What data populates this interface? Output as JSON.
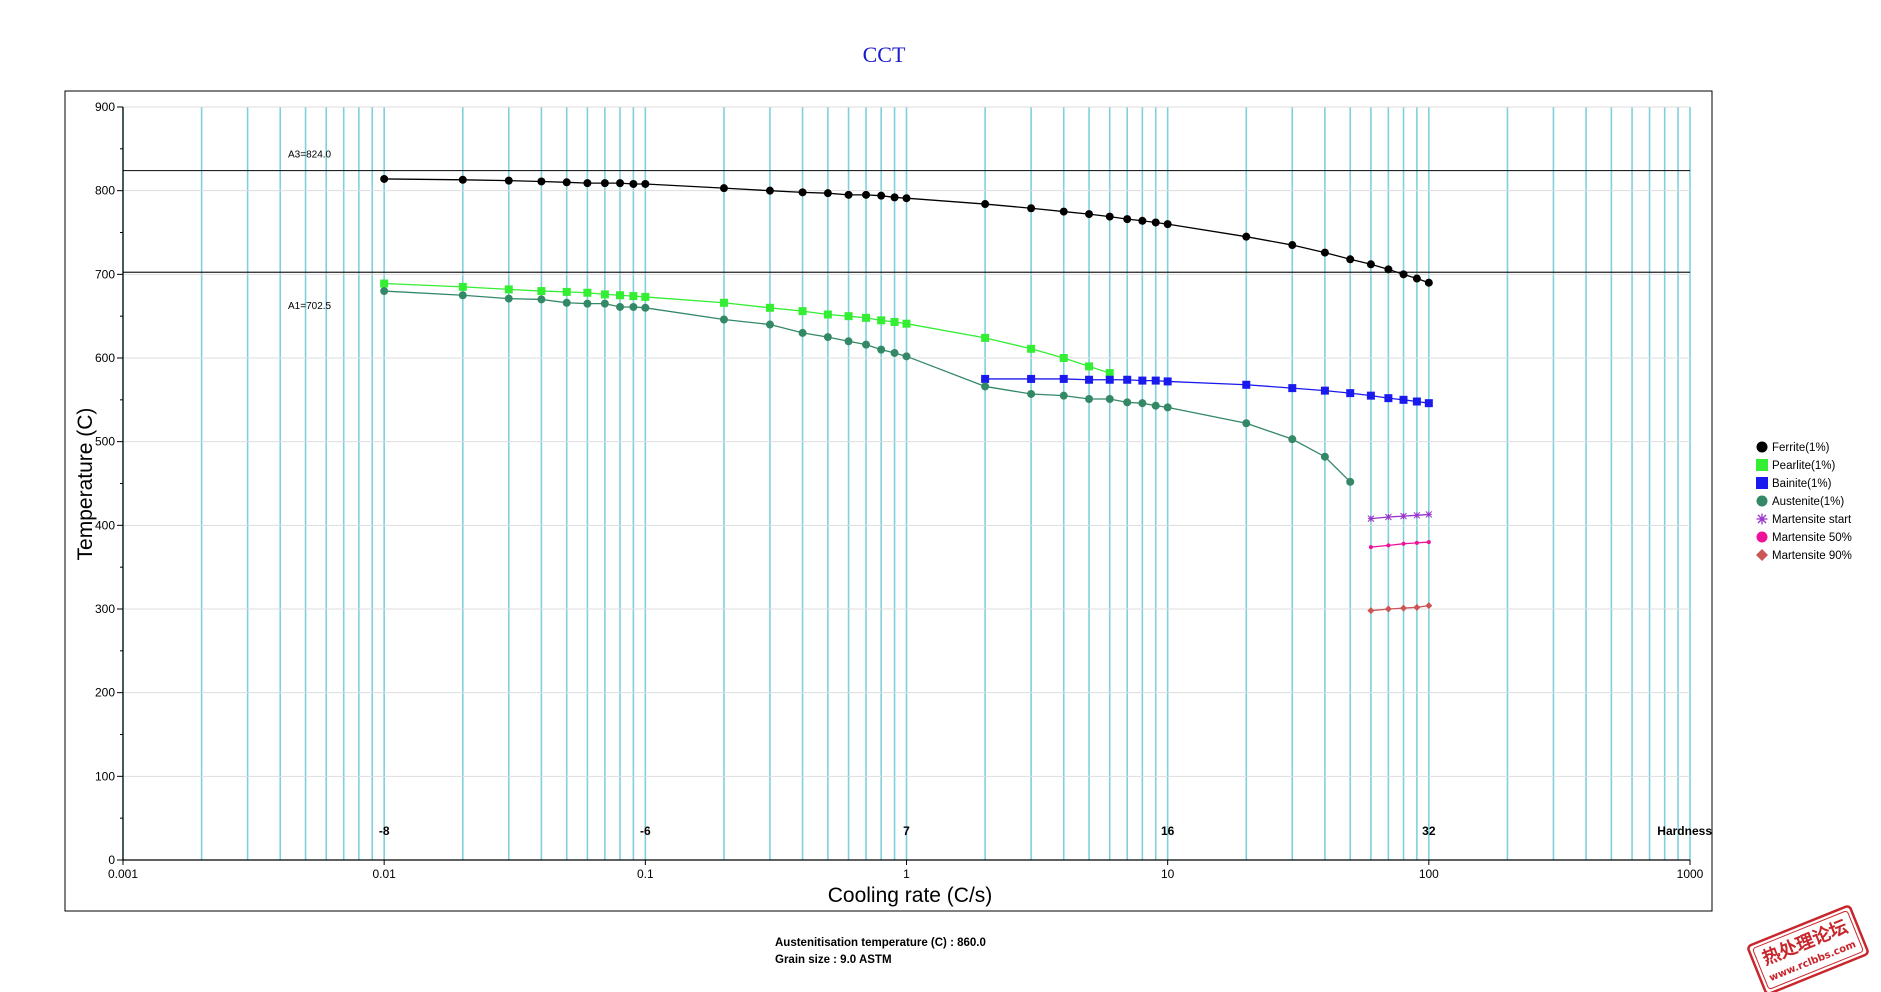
{
  "chart_data": {
    "type": "line",
    "title": "CCT",
    "xlabel": "Cooling rate (C/s)",
    "ylabel": "Temperature (C)",
    "x_scale": "log",
    "xlim": [
      0.001,
      1000
    ],
    "ylim": [
      0,
      900
    ],
    "x_ticks": [
      "0.001",
      "0.01",
      "0.1",
      "1",
      "10",
      "100",
      "1000"
    ],
    "y_ticks": [
      "0",
      "100",
      "200",
      "300",
      "400",
      "500",
      "600",
      "700",
      "800",
      "900"
    ],
    "grid": "vertical minor log lines + horizontal major lines",
    "reference_lines": [
      {
        "label": "A3=824.0",
        "y": 824.0
      },
      {
        "label": "A1=702.5",
        "y": 702.5
      }
    ],
    "hardness": {
      "label": "Hardness",
      "values": [
        {
          "x": 0.01,
          "label": "-8"
        },
        {
          "x": 0.1,
          "label": "-6"
        },
        {
          "x": 1,
          "label": "7"
        },
        {
          "x": 10,
          "label": "16"
        },
        {
          "x": 100,
          "label": "32"
        }
      ]
    },
    "legend_position": "right",
    "series": [
      {
        "name": "Ferrite(1%)",
        "color": "#000000",
        "marker": "circle",
        "points": [
          [
            0.01,
            814
          ],
          [
            0.02,
            813
          ],
          [
            0.03,
            812
          ],
          [
            0.04,
            811
          ],
          [
            0.05,
            810
          ],
          [
            0.06,
            809
          ],
          [
            0.07,
            809
          ],
          [
            0.08,
            809
          ],
          [
            0.09,
            808
          ],
          [
            0.1,
            808
          ],
          [
            0.2,
            803
          ],
          [
            0.3,
            800
          ],
          [
            0.4,
            798
          ],
          [
            0.5,
            797
          ],
          [
            0.6,
            795
          ],
          [
            0.7,
            795
          ],
          [
            0.8,
            794
          ],
          [
            0.9,
            792
          ],
          [
            1,
            791
          ],
          [
            2,
            784
          ],
          [
            3,
            779
          ],
          [
            4,
            775
          ],
          [
            5,
            772
          ],
          [
            6,
            769
          ],
          [
            7,
            766
          ],
          [
            8,
            764
          ],
          [
            9,
            762
          ],
          [
            10,
            760
          ],
          [
            20,
            745
          ],
          [
            30,
            735
          ],
          [
            40,
            726
          ],
          [
            50,
            718
          ],
          [
            60,
            712
          ],
          [
            70,
            706
          ],
          [
            80,
            700
          ],
          [
            90,
            695
          ],
          [
            100,
            690
          ]
        ]
      },
      {
        "name": "Pearlite(1%)",
        "color": "#33ee33",
        "marker": "square",
        "points": [
          [
            0.01,
            689
          ],
          [
            0.02,
            685
          ],
          [
            0.03,
            682
          ],
          [
            0.04,
            680
          ],
          [
            0.05,
            679
          ],
          [
            0.06,
            678
          ],
          [
            0.07,
            676
          ],
          [
            0.08,
            675
          ],
          [
            0.09,
            674
          ],
          [
            0.1,
            673
          ],
          [
            0.2,
            666
          ],
          [
            0.3,
            660
          ],
          [
            0.4,
            656
          ],
          [
            0.5,
            652
          ],
          [
            0.6,
            650
          ],
          [
            0.7,
            648
          ],
          [
            0.8,
            645
          ],
          [
            0.9,
            643
          ],
          [
            1,
            641
          ],
          [
            2,
            624
          ],
          [
            3,
            611
          ],
          [
            4,
            600
          ],
          [
            5,
            590
          ],
          [
            6,
            582
          ]
        ]
      },
      {
        "name": "Bainite(1%)",
        "color": "#1a1aee",
        "marker": "square",
        "points": [
          [
            2,
            575
          ],
          [
            3,
            575
          ],
          [
            4,
            575
          ],
          [
            5,
            574
          ],
          [
            6,
            574
          ],
          [
            7,
            574
          ],
          [
            8,
            573
          ],
          [
            9,
            573
          ],
          [
            10,
            572
          ],
          [
            20,
            568
          ],
          [
            30,
            564
          ],
          [
            40,
            561
          ],
          [
            50,
            558
          ],
          [
            60,
            555
          ],
          [
            70,
            552
          ],
          [
            80,
            550
          ],
          [
            90,
            548
          ],
          [
            100,
            546
          ]
        ]
      },
      {
        "name": "Austenite(1%)",
        "color": "#338866",
        "marker": "circle",
        "points": [
          [
            0.01,
            680
          ],
          [
            0.02,
            675
          ],
          [
            0.03,
            671
          ],
          [
            0.04,
            670
          ],
          [
            0.05,
            666
          ],
          [
            0.06,
            665
          ],
          [
            0.07,
            665
          ],
          [
            0.08,
            661
          ],
          [
            0.09,
            661
          ],
          [
            0.1,
            660
          ],
          [
            0.2,
            646
          ],
          [
            0.3,
            640
          ],
          [
            0.4,
            630
          ],
          [
            0.5,
            625
          ],
          [
            0.6,
            620
          ],
          [
            0.7,
            616
          ],
          [
            0.8,
            610
          ],
          [
            0.9,
            606
          ],
          [
            1,
            602
          ],
          [
            2,
            566
          ],
          [
            3,
            557
          ],
          [
            4,
            555
          ],
          [
            5,
            551
          ],
          [
            6,
            551
          ],
          [
            7,
            547
          ],
          [
            8,
            546
          ],
          [
            9,
            543
          ],
          [
            10,
            541
          ],
          [
            20,
            522
          ],
          [
            30,
            503
          ],
          [
            40,
            482
          ],
          [
            50,
            452
          ]
        ]
      },
      {
        "name": "Martensite start",
        "color": "#9933cc",
        "marker": "star",
        "points": [
          [
            60,
            408
          ],
          [
            70,
            410
          ],
          [
            80,
            411
          ],
          [
            90,
            412
          ],
          [
            100,
            413
          ]
        ]
      },
      {
        "name": "Martensite 50%",
        "color": "#ee1199",
        "marker": "circle",
        "points": [
          [
            60,
            374
          ],
          [
            70,
            376
          ],
          [
            80,
            378
          ],
          [
            90,
            379
          ],
          [
            100,
            380
          ]
        ]
      },
      {
        "name": "Martensite 90%",
        "color": "#cc5555",
        "marker": "diamond",
        "points": [
          [
            60,
            298
          ],
          [
            70,
            300
          ],
          [
            80,
            301
          ],
          [
            90,
            302
          ],
          [
            100,
            304
          ]
        ]
      }
    ]
  },
  "footer": {
    "line1": "Austenitisation temperature (C) : 860.0",
    "line2": "Grain size : 9.0 ASTM"
  },
  "watermark": {
    "line1": "热处理论坛",
    "line2": "www.rclbbs.com"
  }
}
